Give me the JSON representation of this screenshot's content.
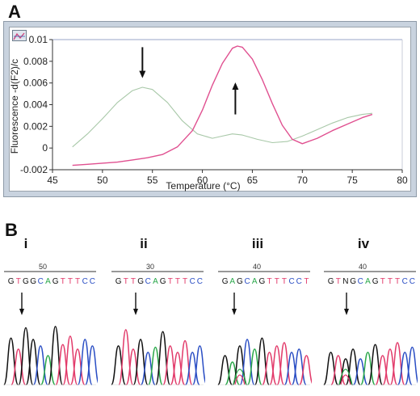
{
  "panels": {
    "a_label": "A",
    "b_label": "B"
  },
  "chart_data": {
    "type": "line",
    "title": "",
    "xlabel": "Temperature (°C)",
    "ylabel": "Fluorescence -d(F2)/dT",
    "ylabel_shown": "Fluorescence -d(F2)/c",
    "xlim": [
      45,
      80
    ],
    "ylim": [
      -0.002,
      0.01
    ],
    "xticks": [
      "45",
      "50",
      "55",
      "60",
      "65",
      "70",
      "75",
      "80"
    ],
    "yticks": [
      "-0.002",
      "0",
      "0.002",
      "0.004",
      "0.006",
      "0.008",
      "0.01"
    ],
    "grid": false,
    "legend": "none",
    "series": [
      {
        "color": "#a8c8a8",
        "x": [
          47,
          48.5,
          50,
          51.5,
          53,
          54,
          55,
          56.5,
          58,
          59.5,
          61,
          62,
          63,
          64,
          65.5,
          67,
          68.5,
          70,
          71.5,
          73,
          74.5,
          76,
          77
        ],
        "y": [
          0.0001,
          0.0013,
          0.0027,
          0.0042,
          0.0053,
          0.0056,
          0.0054,
          0.0042,
          0.0025,
          0.0013,
          0.0009,
          0.0011,
          0.0013,
          0.0012,
          0.0008,
          0.0005,
          0.0006,
          0.0011,
          0.0017,
          0.0023,
          0.0028,
          0.0031,
          0.0032
        ]
      },
      {
        "color": "#e05090",
        "x": [
          47,
          48.5,
          50,
          51.5,
          53,
          54.5,
          56,
          57.5,
          59,
          60,
          61,
          62,
          63,
          63.5,
          64,
          65,
          66,
          67,
          68,
          69,
          70,
          71.5,
          73,
          74.5,
          76,
          77
        ],
        "y": [
          -0.0016,
          -0.0015,
          -0.0014,
          -0.0013,
          -0.0011,
          -0.0009,
          -0.0006,
          0.0001,
          0.0016,
          0.0035,
          0.0058,
          0.0078,
          0.0092,
          0.0094,
          0.0093,
          0.0082,
          0.0063,
          0.0041,
          0.0021,
          0.0008,
          0.0004,
          0.0009,
          0.0016,
          0.0022,
          0.0028,
          0.0031
        ]
      }
    ],
    "annotations": [
      {
        "type": "arrow",
        "direction": "down",
        "x": 54,
        "y_from": 0.0093,
        "y_to": 0.0066
      },
      {
        "type": "arrow",
        "direction": "up",
        "x": 63.3,
        "y_from": 0.0031,
        "y_to": 0.0059
      }
    ]
  },
  "sequencing": [
    {
      "label": "i",
      "position": "50",
      "bases": [
        "G",
        "T",
        "G",
        "G",
        "C",
        "A",
        "G",
        "T",
        "T",
        "T",
        "C",
        "C"
      ]
    },
    {
      "label": "ii",
      "position": "30",
      "bases": [
        "G",
        "T",
        "T",
        "G",
        "C",
        "A",
        "G",
        "T",
        "T",
        "T",
        "C",
        "C"
      ]
    },
    {
      "label": "iii",
      "position": "40",
      "bases": [
        "G",
        "A",
        "G",
        "C",
        "A",
        "G",
        "T",
        "T",
        "T",
        "C",
        "C",
        "T"
      ]
    },
    {
      "label": "iv",
      "position": "40",
      "bases": [
        "G",
        "T",
        "N",
        "G",
        "C",
        "A",
        "G",
        "T",
        "T",
        "T",
        "C",
        "C"
      ]
    }
  ],
  "base_colors": {
    "G": "#111111",
    "A": "#2aa84a",
    "T": "#e23a6a",
    "C": "#2a4ec4",
    "N": "#111111"
  }
}
